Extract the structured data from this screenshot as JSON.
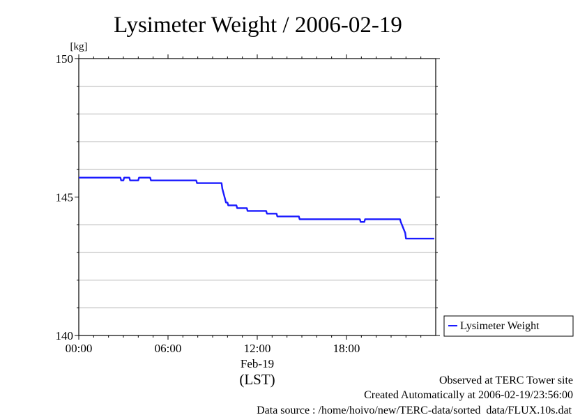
{
  "chart_data": {
    "type": "line",
    "title": "Lysimeter Weight / 2006-02-19",
    "ylabel": "[kg]",
    "xlabel": "(LST)",
    "x_sublabel": "Feb-19",
    "ylim": [
      140,
      150
    ],
    "xlim_hours": [
      0,
      24
    ],
    "y_ticks": [
      {
        "value": 150,
        "label": "150"
      },
      {
        "value": 145,
        "label": "145"
      },
      {
        "value": 140,
        "label": "140"
      }
    ],
    "x_ticks": [
      {
        "value": 0,
        "label": "00:00"
      },
      {
        "value": 6,
        "label": "06:00"
      },
      {
        "value": 12,
        "label": "12:00"
      },
      {
        "value": 18,
        "label": "18:00"
      }
    ],
    "y_gridlines": [
      141,
      142,
      143,
      144,
      146,
      147,
      148,
      149
    ],
    "legend": {
      "position": "right",
      "label": "Lysimeter Weight"
    },
    "line_color": "#1a1aff",
    "series": [
      {
        "name": "Lysimeter Weight",
        "x": [
          0.0,
          2.8,
          2.85,
          3.0,
          3.05,
          3.4,
          3.45,
          4.0,
          4.05,
          4.8,
          4.85,
          7.9,
          7.95,
          8.1,
          8.15,
          9.6,
          9.65,
          9.8,
          9.9,
          10.0,
          10.05,
          10.6,
          10.65,
          11.3,
          11.35,
          12.6,
          12.65,
          13.3,
          13.35,
          14.8,
          14.85,
          18.9,
          18.95,
          19.2,
          19.25,
          21.6,
          21.65,
          21.8,
          21.95,
          22.0,
          22.05,
          23.9
        ],
        "y": [
          145.7,
          145.7,
          145.6,
          145.6,
          145.7,
          145.7,
          145.6,
          145.6,
          145.7,
          145.7,
          145.6,
          145.6,
          145.5,
          145.5,
          145.5,
          145.5,
          145.3,
          145.0,
          144.8,
          144.8,
          144.7,
          144.7,
          144.6,
          144.6,
          144.5,
          144.5,
          144.4,
          144.4,
          144.3,
          144.3,
          144.2,
          144.2,
          144.1,
          144.1,
          144.2,
          144.2,
          144.1,
          143.9,
          143.7,
          143.5,
          143.5,
          143.5
        ]
      }
    ]
  },
  "footer": {
    "line1": "Observed at TERC Tower site",
    "line2": "Created Automatically at 2006-02-19/23:56:00",
    "line3": "Data source : /home/hoivo/new/TERC-data/sorted  data/FLUX.10s.dat"
  }
}
